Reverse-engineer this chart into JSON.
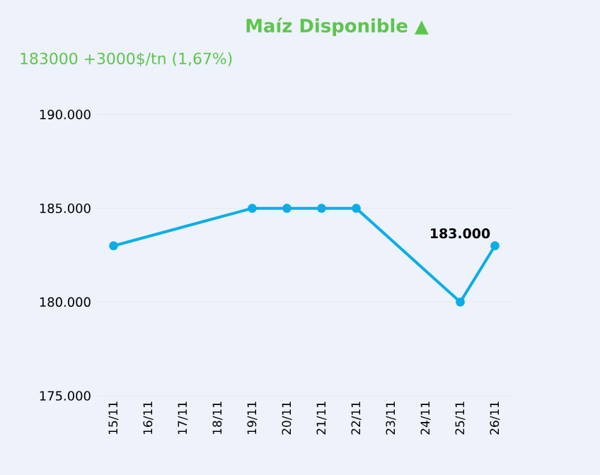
{
  "chart_data": {
    "type": "line",
    "title": "Maíz Disponible ▲",
    "subtitle": "183000 +3000$/tn (1,67%)",
    "categories": [
      "15/11",
      "16/11",
      "17/11",
      "18/11",
      "19/11",
      "20/11",
      "21/11",
      "22/11",
      "23/11",
      "24/11",
      "25/11",
      "26/11"
    ],
    "series": [
      {
        "color": "#0aaee6",
        "values": [
          183000,
          null,
          null,
          null,
          185000,
          185000,
          185000,
          185000,
          null,
          null,
          180000,
          183000
        ],
        "value_labels": [
          null,
          null,
          null,
          null,
          null,
          null,
          null,
          null,
          null,
          null,
          null,
          "183.000"
        ]
      }
    ],
    "ylim": [
      175000,
      190000
    ],
    "yticks": [
      {
        "value": 175000,
        "label": "175.000"
      },
      {
        "value": 180000,
        "label": "180.000"
      },
      {
        "value": 185000,
        "label": "185.000"
      },
      {
        "value": 190000,
        "label": "190.000"
      }
    ],
    "grid": "y",
    "marker": "circle",
    "line_style": "solid"
  }
}
